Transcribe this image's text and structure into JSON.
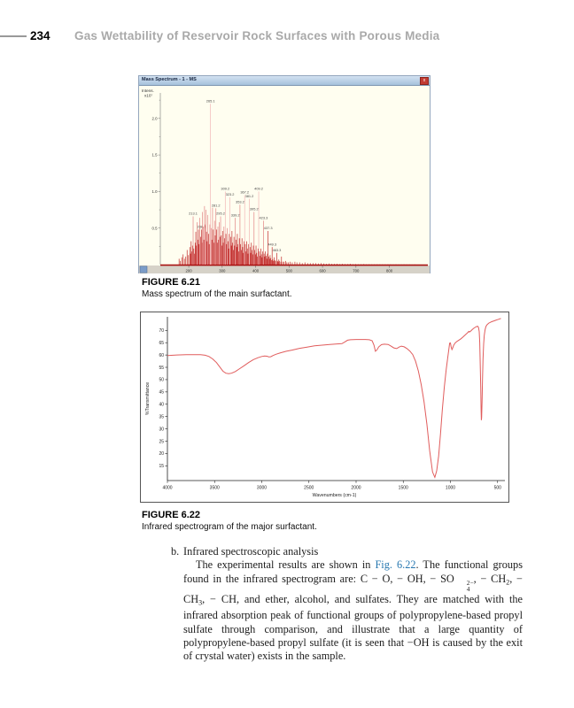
{
  "page": {
    "number": "234",
    "running_title": "Gas Wettability of Reservoir Rock Surfaces with Porous Media"
  },
  "figure21": {
    "label": "FIGURE 6.21",
    "caption": "Mass spectrum of the main surfactant.",
    "window_title": "Mass Spectrum - 1 - MS",
    "close_glyph": "x"
  },
  "figure22": {
    "label": "FIGURE 6.22",
    "caption": "Infrared spectrogram of the major surfactant."
  },
  "body": {
    "item_marker": "b.",
    "item_heading": "Infrared spectroscopic analysis",
    "paragraph_segments": [
      {
        "t": "The experimental results are shown in "
      },
      {
        "t": "Fig. 6.22",
        "s": "link",
        "name": "fig-622-link",
        "interactable": true
      },
      {
        "t": ". The functional groups found in the infrared spectrogram are: C − O, − OH, − SO"
      },
      {
        "s": "stack",
        "sup": "2−",
        "sub": "4"
      },
      {
        "t": ", − CH"
      },
      {
        "t": "2",
        "s": "sub"
      },
      {
        "t": ", − CH"
      },
      {
        "t": "3",
        "s": "sub"
      },
      {
        "t": ", − CH, and ether, alcohol, and sulfates. They are matched with the infrared absorption peak of functional groups of polypropylene-based propyl sulfate through comparison, and illustrate that a large quantity of polypropylene-based propyl sulfate (it is seen that −OH is caused by the exit of crystal water) exists in the sample."
      }
    ]
  },
  "colors": {
    "ms_peak_dark": "#c22b2b",
    "ms_peak_mid": "#e28484",
    "ms_peak_pale": "#f2b6b6",
    "ms_baseline": "#a81010",
    "ir_curve": "#e05c5c",
    "link": "#2878b0"
  },
  "chart_data": [
    {
      "type": "bar",
      "title": "Mass Spectrum - 1 - MS",
      "xlabel": "m/z",
      "ylabel": "Intens.",
      "ylabel2": "x10⁷",
      "xlim": [
        115,
        915
      ],
      "ylim": [
        0,
        2.3
      ],
      "xticks": [
        200,
        300,
        400,
        500,
        600,
        700,
        800
      ],
      "yticks": [
        0.5,
        1.0,
        1.5,
        2.0
      ],
      "peaks": [
        [
          171.1,
          0.08
        ],
        [
          175.1,
          0.05
        ],
        [
          179.1,
          0.1
        ],
        [
          183.1,
          0.14
        ],
        [
          187.1,
          0.08
        ],
        [
          191.1,
          0.11
        ],
        [
          195.1,
          0.2
        ],
        [
          199.1,
          0.13
        ],
        [
          203.1,
          0.24
        ],
        [
          205.1,
          0.15
        ],
        [
          207.1,
          0.32
        ],
        [
          209.1,
          0.18
        ],
        [
          211.1,
          0.26
        ],
        [
          213.1,
          0.66,
          "213.1"
        ],
        [
          215.1,
          0.22
        ],
        [
          217.1,
          0.15
        ],
        [
          219.1,
          0.3
        ],
        [
          221.1,
          0.45
        ],
        [
          223.1,
          0.26
        ],
        [
          225.1,
          0.58
        ],
        [
          227.1,
          0.34
        ],
        [
          229.1,
          0.48
        ],
        [
          231.1,
          0.28
        ],
        [
          233.1,
          0.64
        ],
        [
          235.1,
          0.38
        ],
        [
          238.1,
          0.48,
          "238.1"
        ],
        [
          240.1,
          0.3
        ],
        [
          241.1,
          0.72
        ],
        [
          243.1,
          0.52
        ],
        [
          245.1,
          0.34
        ],
        [
          247.1,
          0.8
        ],
        [
          249.1,
          0.55
        ],
        [
          251.1,
          0.75
        ],
        [
          253.1,
          0.45
        ],
        [
          255.1,
          0.32
        ],
        [
          257.1,
          0.68
        ],
        [
          259.1,
          0.42
        ],
        [
          261.1,
          0.28
        ],
        [
          263.1,
          0.55
        ],
        [
          265.1,
          2.2,
          "265.1"
        ],
        [
          267.1,
          0.5
        ],
        [
          269.1,
          0.34
        ],
        [
          271.1,
          0.78
        ],
        [
          273.2,
          0.48
        ],
        [
          275.2,
          0.3
        ],
        [
          277.2,
          0.6
        ],
        [
          279.2,
          0.4
        ],
        [
          281.2,
          0.77,
          "281.2"
        ],
        [
          283.2,
          0.48
        ],
        [
          285.2,
          0.3
        ],
        [
          287.2,
          0.52
        ],
        [
          289.2,
          0.34
        ],
        [
          291.2,
          0.58
        ],
        [
          293.2,
          0.38
        ],
        [
          295.2,
          0.66,
          "295.2"
        ],
        [
          297.2,
          0.4
        ],
        [
          299.2,
          0.26
        ],
        [
          301.2,
          0.46
        ],
        [
          303.2,
          0.3
        ],
        [
          305.2,
          0.52
        ],
        [
          307.2,
          0.36
        ],
        [
          309.2,
          1.0,
          "309.2"
        ],
        [
          311.2,
          0.42
        ],
        [
          313.2,
          0.28
        ],
        [
          315.2,
          0.5
        ],
        [
          317.2,
          0.32
        ],
        [
          319.2,
          0.22
        ],
        [
          321.2,
          0.42
        ],
        [
          323.2,
          0.92,
          "323.2"
        ],
        [
          325.2,
          0.38
        ],
        [
          327.2,
          0.26
        ],
        [
          329.2,
          0.46
        ],
        [
          331.2,
          0.3
        ],
        [
          333.2,
          0.2
        ],
        [
          335.2,
          0.38
        ],
        [
          337.2,
          0.26
        ],
        [
          339.2,
          0.64,
          "339.2"
        ],
        [
          341.2,
          0.34
        ],
        [
          343.2,
          0.24
        ],
        [
          345.2,
          0.42
        ],
        [
          347.2,
          0.28
        ],
        [
          349.2,
          0.18
        ],
        [
          351.2,
          0.36
        ],
        [
          353.2,
          0.82,
          "353.2"
        ],
        [
          355.2,
          0.28
        ],
        [
          357.2,
          0.2
        ],
        [
          359.2,
          0.36
        ],
        [
          361.2,
          0.24
        ],
        [
          363.2,
          0.16
        ],
        [
          365.2,
          0.32
        ],
        [
          367.2,
          0.95,
          "367.2"
        ],
        [
          369.2,
          0.28
        ],
        [
          371.2,
          0.18
        ],
        [
          373.2,
          0.32
        ],
        [
          375.2,
          0.22
        ],
        [
          377.2,
          0.15
        ],
        [
          379.2,
          0.28
        ],
        [
          381.2,
          0.9,
          "381.2"
        ],
        [
          383.2,
          0.24
        ],
        [
          385.2,
          0.16
        ],
        [
          387.2,
          0.3
        ],
        [
          389.2,
          0.2
        ],
        [
          391.2,
          0.14
        ],
        [
          393.2,
          0.26
        ],
        [
          395.2,
          0.72,
          "395.2"
        ],
        [
          397.2,
          0.2
        ],
        [
          399.2,
          0.14
        ],
        [
          401.2,
          0.26
        ],
        [
          403.2,
          0.16
        ],
        [
          405.2,
          0.11
        ],
        [
          407.2,
          0.22
        ],
        [
          409.2,
          1.0,
          "409.2"
        ],
        [
          411.3,
          0.18
        ],
        [
          413.3,
          0.12
        ],
        [
          415.3,
          0.22
        ],
        [
          417.3,
          0.14
        ],
        [
          419.3,
          0.1
        ],
        [
          421.3,
          0.18
        ],
        [
          423.3,
          0.6,
          "423.3"
        ],
        [
          425.3,
          0.15
        ],
        [
          427.3,
          0.11
        ],
        [
          429.3,
          0.18
        ],
        [
          431.3,
          0.12
        ],
        [
          433.3,
          0.08
        ],
        [
          435.3,
          0.15
        ],
        [
          437.3,
          0.46,
          "437.3"
        ],
        [
          439.3,
          0.11
        ],
        [
          441.3,
          0.08
        ],
        [
          443.3,
          0.13
        ],
        [
          445.3,
          0.09
        ],
        [
          447.3,
          0.06
        ],
        [
          449.3,
          0.24,
          "449.3"
        ],
        [
          451.3,
          0.07
        ],
        [
          453.3,
          0.05
        ],
        [
          455.3,
          0.1
        ],
        [
          457.3,
          0.06
        ],
        [
          459.3,
          0.05
        ],
        [
          463.3,
          0.16,
          "463.3"
        ],
        [
          465.3,
          0.05
        ],
        [
          467.3,
          0.04
        ],
        [
          469.3,
          0.07
        ],
        [
          471.3,
          0.05
        ],
        [
          475.3,
          0.04
        ],
        [
          477.3,
          0.11
        ],
        [
          481.3,
          0.04
        ],
        [
          485.4,
          0.04
        ],
        [
          489.4,
          0.05
        ],
        [
          493.4,
          0.03
        ],
        [
          497.4,
          0.03
        ],
        [
          503.4,
          0.04
        ],
        [
          509.4,
          0.03
        ],
        [
          517.4,
          0.04
        ],
        [
          523.4,
          0.03
        ],
        [
          531.4,
          0.03
        ],
        [
          539.4,
          0.02
        ],
        [
          547.4,
          0.03
        ],
        [
          555.4,
          0.02
        ],
        [
          563.4,
          0.02
        ],
        [
          571.5,
          0.02
        ],
        [
          579.5,
          0.02
        ],
        [
          587.5,
          0.015
        ],
        [
          595.5,
          0.02
        ],
        [
          603.5,
          0.015
        ],
        [
          611.5,
          0.01
        ],
        [
          619.5,
          0.015
        ],
        [
          627.5,
          0.01
        ],
        [
          635.5,
          0.01
        ],
        [
          643.5,
          0.012
        ],
        [
          651.5,
          0.008
        ],
        [
          659.5,
          0.01
        ],
        [
          667.5,
          0.008
        ],
        [
          675.5,
          0.008
        ],
        [
          683.5,
          0.01
        ],
        [
          691.5,
          0.006
        ],
        [
          699.5,
          0.008
        ],
        [
          707.6,
          0.006
        ],
        [
          715.6,
          0.006
        ],
        [
          723.6,
          0.008
        ],
        [
          731.6,
          0.005
        ],
        [
          739.6,
          0.006
        ],
        [
          747.6,
          0.005
        ],
        [
          755.6,
          0.005
        ],
        [
          763.6,
          0.006
        ],
        [
          771.6,
          0.004
        ],
        [
          779.6,
          0.005
        ],
        [
          787.6,
          0.004
        ],
        [
          795.6,
          0.004
        ],
        [
          803.6,
          0.005
        ],
        [
          811.6,
          0.003
        ],
        [
          819.7,
          0.004
        ],
        [
          827.7,
          0.003
        ],
        [
          835.7,
          0.003
        ],
        [
          843.7,
          0.004
        ],
        [
          851.7,
          0.003
        ],
        [
          859.7,
          0.003
        ],
        [
          867.7,
          0.002
        ],
        [
          875.7,
          0.003
        ]
      ]
    },
    {
      "type": "line",
      "xlabel": "Wavenumbers (cm-1)",
      "ylabel": "%Transmittance",
      "xlim": [
        4000,
        460
      ],
      "ylim": [
        9,
        75.5
      ],
      "xticks": [
        4000,
        3500,
        3000,
        2500,
        2000,
        1500,
        1000,
        500
      ],
      "yticks": [
        15,
        20,
        25,
        30,
        35,
        40,
        45,
        50,
        55,
        60,
        65,
        70
      ],
      "points": [
        [
          4000,
          59.8
        ],
        [
          3900,
          60.0
        ],
        [
          3800,
          60.1
        ],
        [
          3700,
          60.1
        ],
        [
          3650,
          60.1
        ],
        [
          3600,
          59.9
        ],
        [
          3560,
          59.4
        ],
        [
          3520,
          58.4
        ],
        [
          3480,
          56.9
        ],
        [
          3440,
          54.9
        ],
        [
          3410,
          53.4
        ],
        [
          3380,
          52.6
        ],
        [
          3350,
          52.4
        ],
        [
          3320,
          52.6
        ],
        [
          3280,
          53.3
        ],
        [
          3240,
          54.3
        ],
        [
          3190,
          55.6
        ],
        [
          3140,
          56.9
        ],
        [
          3090,
          58.1
        ],
        [
          3040,
          58.9
        ],
        [
          3000,
          59.4
        ],
        [
          2970,
          59.6
        ],
        [
          2945,
          59.5
        ],
        [
          2925,
          59.2
        ],
        [
          2905,
          59.3
        ],
        [
          2880,
          59.8
        ],
        [
          2850,
          60.3
        ],
        [
          2800,
          60.9
        ],
        [
          2740,
          61.5
        ],
        [
          2680,
          62.0
        ],
        [
          2600,
          62.7
        ],
        [
          2520,
          63.2
        ],
        [
          2440,
          63.7
        ],
        [
          2360,
          64.0
        ],
        [
          2280,
          64.3
        ],
        [
          2200,
          64.5
        ],
        [
          2150,
          64.6
        ],
        [
          2120,
          65.3
        ],
        [
          2090,
          66.0
        ],
        [
          2060,
          66.2
        ],
        [
          2000,
          66.3
        ],
        [
          1950,
          66.3
        ],
        [
          1900,
          66.3
        ],
        [
          1860,
          66.2
        ],
        [
          1830,
          65.8
        ],
        [
          1810,
          64.0
        ],
        [
          1795,
          61.5
        ],
        [
          1780,
          62.0
        ],
        [
          1760,
          63.3
        ],
        [
          1730,
          64.2
        ],
        [
          1700,
          64.4
        ],
        [
          1660,
          64.3
        ],
        [
          1630,
          63.6
        ],
        [
          1600,
          62.9
        ],
        [
          1570,
          62.6
        ],
        [
          1545,
          63.2
        ],
        [
          1520,
          63.6
        ],
        [
          1490,
          63.3
        ],
        [
          1460,
          62.6
        ],
        [
          1430,
          61.6
        ],
        [
          1400,
          60.2
        ],
        [
          1370,
          57.5
        ],
        [
          1340,
          53.5
        ],
        [
          1310,
          48.0
        ],
        [
          1280,
          41.0
        ],
        [
          1250,
          32.0
        ],
        [
          1220,
          21.0
        ],
        [
          1190,
          12.5
        ],
        [
          1165,
          10.3
        ],
        [
          1145,
          13.0
        ],
        [
          1125,
          19.0
        ],
        [
          1105,
          28.0
        ],
        [
          1085,
          38.0
        ],
        [
          1065,
          47.0
        ],
        [
          1045,
          54.0
        ],
        [
          1030,
          58.5
        ],
        [
          1018,
          62.0
        ],
        [
          1008,
          64.8
        ],
        [
          1000,
          64.9
        ],
        [
          992,
          63.3
        ],
        [
          984,
          62.2
        ],
        [
          976,
          62.8
        ],
        [
          966,
          63.9
        ],
        [
          952,
          64.8
        ],
        [
          935,
          65.4
        ],
        [
          915,
          65.9
        ],
        [
          895,
          66.4
        ],
        [
          870,
          67.2
        ],
        [
          845,
          68.1
        ],
        [
          820,
          69.0
        ],
        [
          805,
          69.6
        ],
        [
          795,
          69.4
        ],
        [
          785,
          69.7
        ],
        [
          770,
          70.3
        ],
        [
          755,
          70.8
        ],
        [
          740,
          71.2
        ],
        [
          725,
          71.5
        ],
        [
          712,
          71.7
        ],
        [
          702,
          71.2
        ],
        [
          695,
          69.5
        ],
        [
          689,
          65.0
        ],
        [
          684,
          57.0
        ],
        [
          679,
          47.0
        ],
        [
          675,
          38.0
        ],
        [
          672,
          33.5
        ],
        [
          669,
          34.5
        ],
        [
          665,
          41.0
        ],
        [
          660,
          50.0
        ],
        [
          654,
          58.5
        ],
        [
          648,
          64.5
        ],
        [
          641,
          68.0
        ],
        [
          633,
          70.2
        ],
        [
          624,
          71.5
        ],
        [
          614,
          72.2
        ],
        [
          604,
          72.6
        ],
        [
          592,
          73.0
        ],
        [
          580,
          73.2
        ],
        [
          565,
          73.5
        ],
        [
          550,
          73.7
        ],
        [
          535,
          73.9
        ],
        [
          520,
          74.1
        ],
        [
          505,
          74.3
        ],
        [
          490,
          74.5
        ],
        [
          475,
          74.7
        ],
        [
          465,
          74.8
        ]
      ]
    }
  ]
}
